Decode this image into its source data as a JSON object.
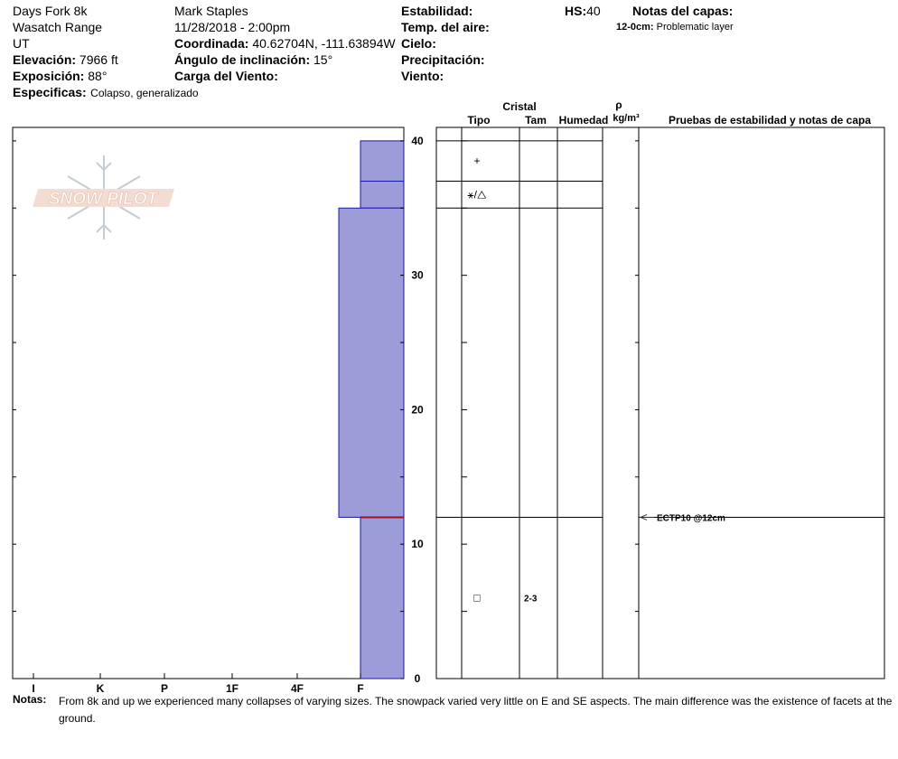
{
  "header": {
    "location": "Days Fork 8k",
    "range": "Wasatch Range",
    "state": "UT",
    "elevation_label": "Elevación:",
    "elevation_value": "7966 ft",
    "aspect_label": "Exposición:",
    "aspect_value": "88°",
    "specifics_label": "Especificas:",
    "specifics_value": "Colapso, generalizado",
    "observer": "Mark Staples",
    "datetime": "11/28/2018 - 2:00pm",
    "coord_label": "Coordinada:",
    "coord_value": "40.62704N, -111.63894W",
    "slope_label": "Ángulo de inclinación:",
    "slope_value": "15°",
    "wind_load_label": "Carga del Viento:",
    "stability_label": "Estabilidad:",
    "air_temp_label": "Temp. del aire:",
    "sky_label": "Cielo:",
    "precip_label": "Precipitación:",
    "wind_label": "Viento:",
    "hs_label": "HS:",
    "hs_value": "40",
    "layer_notes_label": "Notas del capas:",
    "layer_note_depth": "12-0cm:",
    "layer_note_text": "Problematic layer"
  },
  "logo": {
    "text": "SNOW PILOT"
  },
  "table_headers": {
    "crystal": "Cristal",
    "type": "Tipo",
    "size": "Tam",
    "moisture": "Humedad",
    "rho": "ρ",
    "density_unit": "kg/m³",
    "tests": "Pruebas de estabilidad y notas de capa"
  },
  "notes": {
    "label": "Notas:",
    "text": "From 8k and up we experienced many collapses of varying sizes. The snowpack varied very little on E and SE aspects. The main difference was the existence of facets at the ground."
  },
  "colors": {
    "layer_fill": "#9c9cd8",
    "layer_edge": "#1a1aa8",
    "weak_line": "#a0102a"
  },
  "chart_data": {
    "type": "snow-profile",
    "height_axis": {
      "label": "",
      "unit": "cm",
      "min": 0,
      "max": 40,
      "ticks": [
        0,
        10,
        20,
        30,
        40
      ]
    },
    "hardness_axis": {
      "ticks": [
        "I",
        "K",
        "P",
        "1F",
        "4F",
        "F"
      ]
    },
    "layers": [
      {
        "top": 40,
        "bottom": 37,
        "hardness": "F"
      },
      {
        "top": 37,
        "bottom": 35,
        "hardness": "F"
      },
      {
        "top": 35,
        "bottom": 12,
        "hardness": "4F-F"
      },
      {
        "top": 12,
        "bottom": 0,
        "hardness": "F"
      }
    ],
    "weak_interface": 12,
    "layer_boundaries": [
      40,
      37,
      35,
      12
    ],
    "grain_types": [
      {
        "height": 38.5,
        "symbol": "+",
        "size": ""
      },
      {
        "height": 36.0,
        "symbol": "⚹/△",
        "size": ""
      },
      {
        "height": 6.0,
        "symbol": "□",
        "size": "2-3"
      }
    ],
    "tests": [
      {
        "height": 12,
        "label": "ECTP10 @12cm"
      }
    ]
  }
}
